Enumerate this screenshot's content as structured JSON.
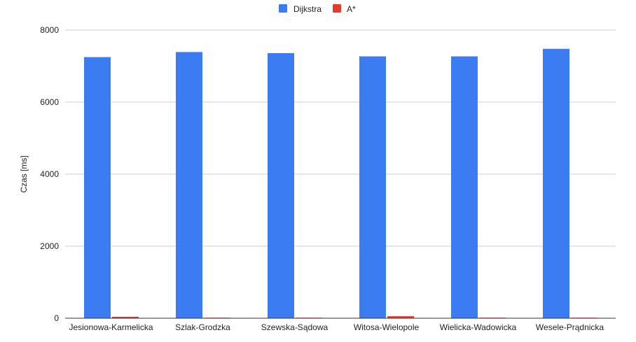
{
  "chart_data": {
    "type": "bar",
    "title": "",
    "xlabel": "",
    "ylabel": "Czas [ms]",
    "ylim": [
      0,
      8000
    ],
    "yticks": [
      0,
      2000,
      4000,
      6000,
      8000
    ],
    "grid": true,
    "legend_position": "top-center",
    "categories": [
      "Jesionowa-Karmelicka",
      "Szlak-Grodzka",
      "Szewska-Sądowa",
      "Witosa-Wielopole",
      "Wielicka-Wadowicka",
      "Wesele-Prądnicka"
    ],
    "series": [
      {
        "name": "Dijkstra",
        "color": "#3b7cf2",
        "values": [
          7250,
          7390,
          7360,
          7270,
          7270,
          7480
        ]
      },
      {
        "name": "A*",
        "color": "#e53a2c",
        "values": [
          40,
          15,
          15,
          55,
          15,
          15
        ]
      }
    ]
  }
}
